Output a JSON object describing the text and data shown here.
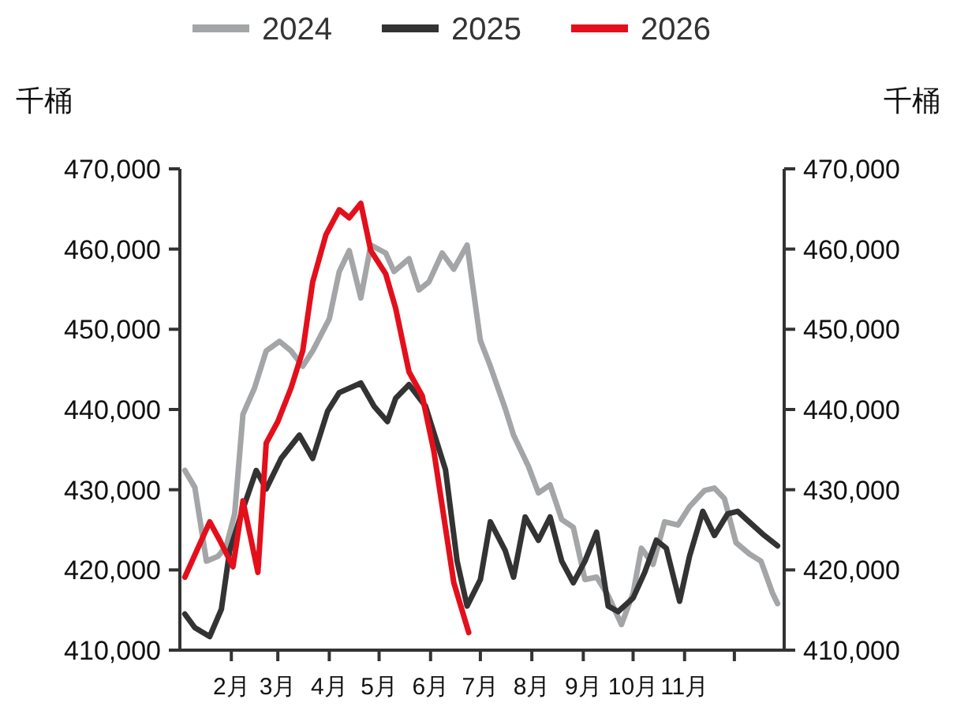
{
  "chart_data": {
    "type": "line",
    "ylabel": "千桶",
    "y2label": "千桶",
    "legend": "top",
    "grid": false,
    "marker": "none",
    "line_style": "solid",
    "xlim": [
      "--01-01",
      "--12-31"
    ],
    "xticks": [
      {
        "value": "--02-01",
        "label": "2月"
      },
      {
        "value": "--03-01",
        "label": "3月"
      },
      {
        "value": "--04-01",
        "label": "4月"
      },
      {
        "value": "--05-01",
        "label": "5月"
      },
      {
        "value": "--06-01",
        "label": "6月"
      },
      {
        "value": "--07-01",
        "label": "7月"
      },
      {
        "value": "--08-01",
        "label": "8月"
      },
      {
        "value": "--09-01",
        "label": "9月"
      },
      {
        "value": "--10-01",
        "label": "10月"
      },
      {
        "value": "--11-01",
        "label": "11月"
      },
      {
        "value": "--12-01",
        "label": null
      }
    ],
    "ylim": [
      410000,
      470000
    ],
    "yticks": [
      {
        "value": 410000,
        "label": "410,000"
      },
      {
        "value": 420000,
        "label": "420,000"
      },
      {
        "value": 430000,
        "label": "430,000"
      },
      {
        "value": 440000,
        "label": "440,000"
      },
      {
        "value": 450000,
        "label": "450,000"
      },
      {
        "value": 460000,
        "label": "460,000"
      },
      {
        "value": 470000,
        "label": "470,000"
      }
    ],
    "y2lim": [
      410000,
      470000
    ],
    "y2ticks": [
      {
        "value": 410000,
        "label": "410,000"
      },
      {
        "value": 420000,
        "label": "420,000"
      },
      {
        "value": 430000,
        "label": "430,000"
      },
      {
        "value": 440000,
        "label": "440,000"
      },
      {
        "value": 450000,
        "label": "450,000"
      },
      {
        "value": 460000,
        "label": "460,000"
      },
      {
        "value": 470000,
        "label": "470,000"
      }
    ],
    "series": [
      {
        "name": "2024",
        "color": "#a3a5a7",
        "x": [
          "--01-04",
          "--01-10",
          "--01-17",
          "--01-24",
          "--01-29",
          "--02-03",
          "--02-08",
          "--02-15",
          "--02-22",
          "--03-02",
          "--03-09",
          "--03-16",
          "--03-22",
          "--04-01",
          "--04-07",
          "--04-13",
          "--04-20",
          "--04-26",
          "--05-05",
          "--05-10",
          "--05-19",
          "--05-25",
          "--05-31",
          "--06-08",
          "--06-15",
          "--06-23",
          "--07-01",
          "--07-07",
          "--07-16",
          "--07-21",
          "--07-30",
          "--08-05",
          "--08-12",
          "--08-19",
          "--08-26",
          "--09-02",
          "--09-09",
          "--09-16",
          "--09-24",
          "--10-01",
          "--10-06",
          "--10-13",
          "--10-20",
          "--10-28",
          "--11-04",
          "--11-13",
          "--11-19",
          "--11-25",
          "--12-02",
          "--12-10",
          "--12-17",
          "--12-24",
          "--12-27"
        ],
        "values": [
          432400,
          430300,
          421100,
          421700,
          423000,
          427000,
          439400,
          442700,
          447300,
          448500,
          447300,
          445400,
          447300,
          451300,
          457200,
          459800,
          453900,
          460500,
          459500,
          457200,
          458800,
          454900,
          455900,
          459500,
          457500,
          460500,
          448600,
          445400,
          440100,
          436800,
          432900,
          429600,
          430600,
          426300,
          425300,
          418800,
          419100,
          416800,
          413200,
          417100,
          422700,
          420700,
          426000,
          425600,
          427900,
          429900,
          430200,
          428900,
          423400,
          422000,
          421100,
          417100,
          415800
        ]
      },
      {
        "name": "2025",
        "color": "#333333",
        "x": [
          "--01-04",
          "--01-10",
          "--01-19",
          "--01-26",
          "--01-31",
          "--02-08",
          "--02-16",
          "--02-22",
          "--03-03",
          "--03-14",
          "--03-22",
          "--03-31",
          "--04-07",
          "--04-20",
          "--04-28",
          "--05-06",
          "--05-11",
          "--05-19",
          "--05-29",
          "--06-10",
          "--06-17",
          "--06-23",
          "--07-01",
          "--07-07",
          "--07-16",
          "--07-21",
          "--07-28",
          "--08-05",
          "--08-12",
          "--08-19",
          "--08-26",
          "--09-02",
          "--09-09",
          "--09-16",
          "--09-22",
          "--10-01",
          "--10-08",
          "--10-15",
          "--10-21",
          "--10-29",
          "--11-04",
          "--11-12",
          "--11-19",
          "--11-27",
          "--12-03",
          "--12-12",
          "--12-19",
          "--12-27"
        ],
        "values": [
          414500,
          412800,
          411700,
          415100,
          422400,
          427600,
          432400,
          430100,
          433900,
          436800,
          433900,
          439800,
          442100,
          443300,
          440400,
          438500,
          441400,
          443100,
          440400,
          432500,
          421100,
          415500,
          418800,
          426000,
          422400,
          419100,
          426600,
          423700,
          426600,
          421100,
          418400,
          421100,
          424700,
          415500,
          414800,
          416500,
          419700,
          423700,
          422700,
          416100,
          421700,
          427300,
          424300,
          427000,
          427300,
          425600,
          424300,
          423000
        ]
      },
      {
        "name": "2026",
        "color": "#e3101b",
        "x": [
          "--01-04",
          "--01-19",
          "--01-25",
          "--02-02",
          "--02-08",
          "--02-17",
          "--02-22",
          "--03-01",
          "--03-09",
          "--03-16",
          "--03-22",
          "--03-30",
          "--04-07",
          "--04-13",
          "--04-20",
          "--04-26",
          "--05-05",
          "--05-11",
          "--05-19",
          "--05-27",
          "--06-03",
          "--06-15",
          "--06-24"
        ],
        "values": [
          419100,
          426000,
          423700,
          420400,
          428600,
          419700,
          435800,
          438500,
          442700,
          447300,
          455900,
          461800,
          464900,
          463900,
          465700,
          459800,
          456900,
          452600,
          444700,
          441700,
          434800,
          418400,
          412200
        ]
      }
    ]
  }
}
